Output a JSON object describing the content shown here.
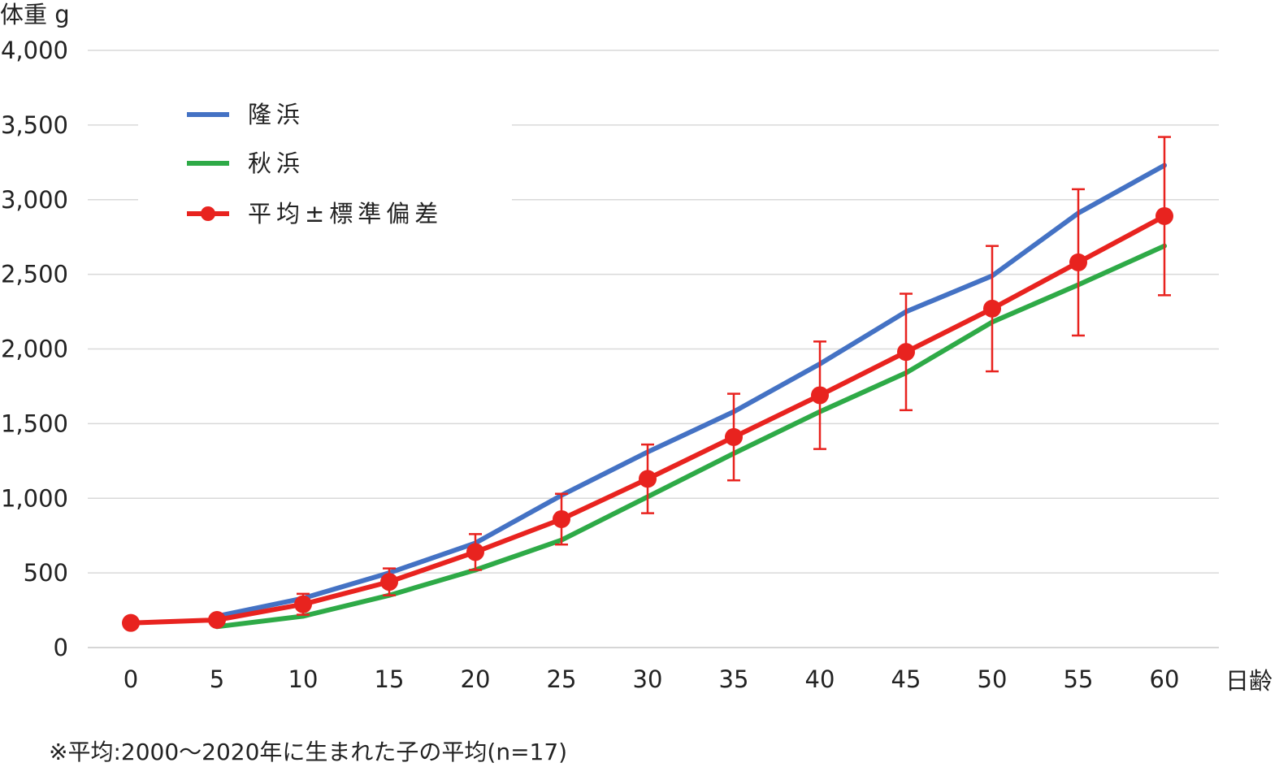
{
  "chart_data": {
    "type": "line",
    "ylabel": "体重 g",
    "xlabel": "日齢",
    "xlim": [
      0,
      60
    ],
    "ylim": [
      0,
      4000
    ],
    "x_ticks": [
      "0",
      "5",
      "10",
      "15",
      "20",
      "25",
      "30",
      "35",
      "40",
      "45",
      "50",
      "55",
      "60"
    ],
    "y_ticks": [
      "0",
      "500",
      "1,000",
      "1,500",
      "2,000",
      "2,500",
      "3,000",
      "3,500",
      "4,000"
    ],
    "grid": "horizontal",
    "legend_placement": "top-left",
    "x": [
      0,
      5,
      10,
      15,
      20,
      25,
      30,
      35,
      40,
      45,
      50,
      55,
      60
    ],
    "series": [
      {
        "name": "隆浜",
        "color": "#4472c4",
        "x": [
          5,
          10,
          15,
          20,
          25,
          30,
          35,
          40,
          45,
          50,
          55,
          60
        ],
        "values": [
          210,
          330,
          500,
          700,
          1020,
          1310,
          1580,
          1900,
          2250,
          2490,
          2910,
          3230
        ]
      },
      {
        "name": "秋浜",
        "color": "#2eaa47",
        "x": [
          5,
          10,
          15,
          20,
          25,
          30,
          35,
          40,
          45,
          50,
          55,
          60
        ],
        "values": [
          140,
          210,
          350,
          520,
          720,
          1010,
          1300,
          1580,
          1840,
          2180,
          2430,
          2690
        ]
      },
      {
        "name": "平均±標準偏差",
        "color": "#e8231f",
        "x": [
          0,
          5,
          10,
          15,
          20,
          25,
          30,
          35,
          40,
          45,
          50,
          55,
          60
        ],
        "values": [
          165,
          185,
          290,
          440,
          640,
          860,
          1130,
          1410,
          1690,
          1980,
          2270,
          2580,
          2890
        ],
        "error": [
          0,
          30,
          70,
          90,
          120,
          170,
          230,
          290,
          360,
          390,
          420,
          490,
          530
        ]
      }
    ],
    "footnote": "※平均:2000〜2020年に生まれた子の平均(n=17)"
  }
}
